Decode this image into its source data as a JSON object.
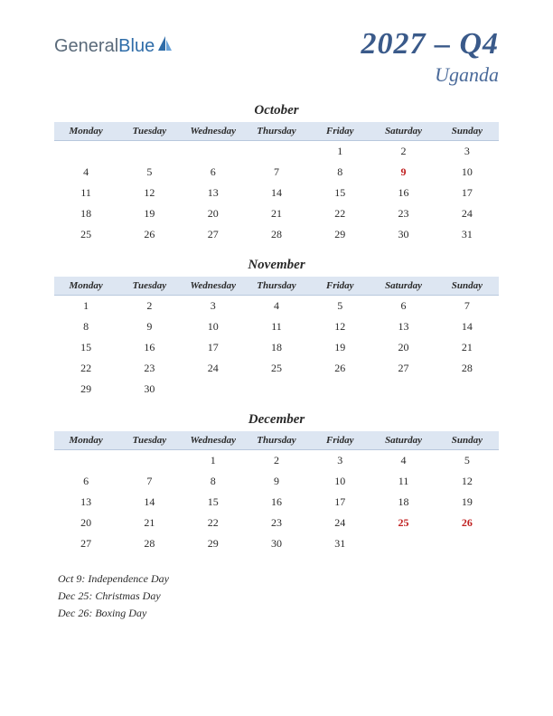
{
  "logo": {
    "part1": "General",
    "part2": "Blue"
  },
  "title": {
    "main": "2027 – Q4",
    "sub": "Uganda"
  },
  "colors": {
    "header_bg": "#dde6f2",
    "header_border": "#b8c8dd",
    "title_color": "#3a5a8a",
    "subtitle_color": "#4a6a9a",
    "holiday_color": "#c02020",
    "text_color": "#2a2a2a"
  },
  "day_headers": [
    "Monday",
    "Tuesday",
    "Wednesday",
    "Thursday",
    "Friday",
    "Saturday",
    "Sunday"
  ],
  "months": [
    {
      "name": "October",
      "weeks": [
        [
          "",
          "",
          "",
          "",
          "1",
          "2",
          "3"
        ],
        [
          "4",
          "5",
          "6",
          "7",
          "8",
          "9",
          "10"
        ],
        [
          "11",
          "12",
          "13",
          "14",
          "15",
          "16",
          "17"
        ],
        [
          "18",
          "19",
          "20",
          "21",
          "22",
          "23",
          "24"
        ],
        [
          "25",
          "26",
          "27",
          "28",
          "29",
          "30",
          "31"
        ]
      ],
      "holidays": [
        "9"
      ]
    },
    {
      "name": "November",
      "weeks": [
        [
          "1",
          "2",
          "3",
          "4",
          "5",
          "6",
          "7"
        ],
        [
          "8",
          "9",
          "10",
          "11",
          "12",
          "13",
          "14"
        ],
        [
          "15",
          "16",
          "17",
          "18",
          "19",
          "20",
          "21"
        ],
        [
          "22",
          "23",
          "24",
          "25",
          "26",
          "27",
          "28"
        ],
        [
          "29",
          "30",
          "",
          "",
          "",
          "",
          ""
        ]
      ],
      "holidays": []
    },
    {
      "name": "December",
      "weeks": [
        [
          "",
          "",
          "1",
          "2",
          "3",
          "4",
          "5"
        ],
        [
          "6",
          "7",
          "8",
          "9",
          "10",
          "11",
          "12"
        ],
        [
          "13",
          "14",
          "15",
          "16",
          "17",
          "18",
          "19"
        ],
        [
          "20",
          "21",
          "22",
          "23",
          "24",
          "25",
          "26"
        ],
        [
          "27",
          "28",
          "29",
          "30",
          "31",
          "",
          ""
        ]
      ],
      "holidays": [
        "25",
        "26"
      ]
    }
  ],
  "holiday_list": [
    "Oct 9: Independence Day",
    "Dec 25: Christmas Day",
    "Dec 26: Boxing Day"
  ]
}
